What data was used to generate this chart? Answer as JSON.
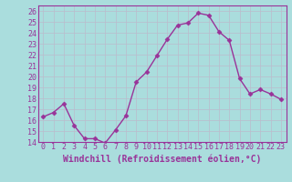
{
  "x": [
    0,
    1,
    2,
    3,
    4,
    5,
    6,
    7,
    8,
    9,
    10,
    11,
    12,
    13,
    14,
    15,
    16,
    17,
    18,
    19,
    20,
    21,
    22,
    23
  ],
  "y": [
    16.3,
    16.7,
    17.5,
    15.5,
    14.3,
    14.3,
    13.9,
    15.1,
    16.4,
    19.5,
    20.4,
    21.9,
    23.4,
    24.7,
    24.9,
    25.8,
    25.6,
    24.1,
    23.3,
    19.8,
    18.4,
    18.8,
    18.4,
    17.9
  ],
  "line_color": "#993399",
  "marker": "D",
  "marker_size": 2.5,
  "bg_color": "#aadddd",
  "grid_color": "#bbbbcc",
  "xlabel": "Windchill (Refroidissement éolien,°C)",
  "ylim": [
    14,
    26.5
  ],
  "yticks": [
    14,
    15,
    16,
    17,
    18,
    19,
    20,
    21,
    22,
    23,
    24,
    25,
    26
  ],
  "xticks": [
    0,
    1,
    2,
    3,
    4,
    5,
    6,
    7,
    8,
    9,
    10,
    11,
    12,
    13,
    14,
    15,
    16,
    17,
    18,
    19,
    20,
    21,
    22,
    23
  ],
  "line_width": 1.0,
  "xlabel_fontsize": 7.0,
  "tick_fontsize": 6.0,
  "line_color_hex": "#993399"
}
